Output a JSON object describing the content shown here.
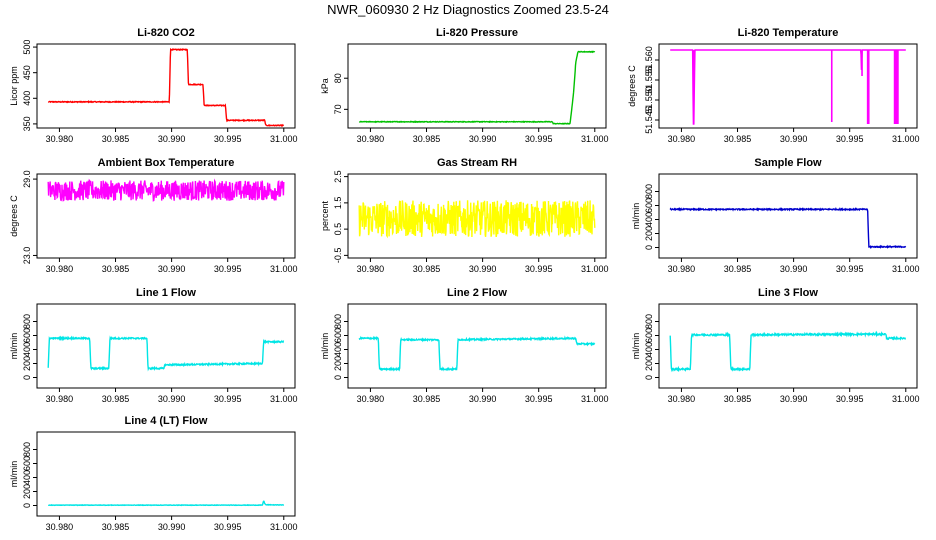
{
  "page": {
    "title": "NWR_060930  2 Hz Diagnostics Zoomed 23.5-24"
  },
  "chart_data": [
    {
      "type": "line",
      "title": "Li-820 CO2",
      "xlabel": "",
      "ylabel": "Licor ppm",
      "xlim": [
        30.978,
        31.001
      ],
      "ylim": [
        342,
        506
      ],
      "x_ticks": [
        "30.980",
        "30.985",
        "30.990",
        "30.995",
        "31.000"
      ],
      "y_ticks": [
        "350",
        "400",
        "450",
        "500"
      ],
      "color": "#ff0000",
      "noise": 0.8,
      "series": [
        {
          "x": [
            30.979,
            30.9898,
            30.9899,
            30.9914,
            30.9915,
            30.9928,
            30.9929,
            30.9948,
            30.9949,
            30.9983,
            30.9984,
            31.0
          ],
          "y": [
            393,
            393,
            495,
            495,
            427,
            427,
            386,
            386,
            357,
            357,
            347,
            347
          ]
        }
      ]
    },
    {
      "type": "line",
      "title": "Li-820 Pressure",
      "xlabel": "",
      "ylabel": "kPa",
      "xlim": [
        30.978,
        31.001
      ],
      "ylim": [
        64,
        91
      ],
      "x_ticks": [
        "30.980",
        "30.985",
        "30.990",
        "30.995",
        "31.000"
      ],
      "y_ticks": [
        "70",
        "80"
      ],
      "color": "#00c000",
      "noise": 0.1,
      "series": [
        {
          "x": [
            30.979,
            30.9962,
            30.9963,
            30.9978,
            30.9981,
            30.9983,
            30.9985,
            31.0
          ],
          "y": [
            66.0,
            66.0,
            65.4,
            65.4,
            75,
            85,
            88.5,
            88.5
          ]
        }
      ]
    },
    {
      "type": "line",
      "title": "Li-820 Temperature",
      "xlabel": "",
      "ylabel": "degrees C",
      "xlim": [
        30.978,
        31.001
      ],
      "ylim": [
        51.543,
        51.564
      ],
      "x_ticks": [
        "30.980",
        "30.985",
        "30.990",
        "30.995",
        "31.000"
      ],
      "y_ticks": [
        "51.545",
        "51.550",
        "51.555",
        "51.560"
      ],
      "color": "#ff00ff",
      "noise": 0,
      "series": [
        {
          "x": [
            30.979,
            30.981,
            30.98105,
            30.9811,
            30.9812,
            30.996,
            30.99605,
            30.9961,
            30.9962,
            30.9934,
            31.0
          ],
          "y": [
            51.5625,
            51.5625,
            51.544,
            51.544,
            51.5625,
            51.5625,
            51.557,
            51.5625,
            51.5625,
            51.5625,
            51.5625
          ]
        }
      ],
      "spikes": [
        {
          "x": 30.9811,
          "y": 51.544
        },
        {
          "x": 30.9961,
          "y": 51.556
        },
        {
          "x": 30.9934,
          "y": 51.5445
        },
        {
          "x": 30.9966,
          "y": 51.544
        },
        {
          "x": 30.9967,
          "y": 51.544
        },
        {
          "x": 30.999,
          "y": 51.544
        },
        {
          "x": 30.9991,
          "y": 51.544
        },
        {
          "x": 30.9992,
          "y": 51.544
        },
        {
          "x": 30.9993,
          "y": 51.544
        }
      ]
    },
    {
      "type": "line",
      "title": "Ambient Box Temperature",
      "xlabel": "",
      "ylabel": "degrees C",
      "xlim": [
        30.978,
        31.001
      ],
      "ylim": [
        22.8,
        29.4
      ],
      "x_ticks": [
        "30.980",
        "30.985",
        "30.990",
        "30.995",
        "31.000"
      ],
      "y_ticks": [
        "23.0",
        "29.0"
      ],
      "color": "#ff00ff",
      "noise": 0.8,
      "series": [
        {
          "x": [
            30.979,
            31.0
          ],
          "y": [
            28.1,
            28.1
          ]
        }
      ]
    },
    {
      "type": "line",
      "title": "Gas Stream RH",
      "xlabel": "",
      "ylabel": "percent",
      "xlim": [
        30.978,
        31.001
      ],
      "ylim": [
        -0.6,
        2.6
      ],
      "x_ticks": [
        "30.980",
        "30.985",
        "30.990",
        "30.995",
        "31.000"
      ],
      "y_ticks": [
        "-0.5",
        "0.5",
        "1.5",
        "2.5"
      ],
      "color": "#ffff00",
      "noise": 0.7,
      "series": [
        {
          "x": [
            30.979,
            31.0
          ],
          "y": [
            0.9,
            0.9
          ]
        }
      ]
    },
    {
      "type": "line",
      "title": "Sample Flow",
      "xlabel": "",
      "ylabel": "ml/min",
      "xlim": [
        30.978,
        31.001
      ],
      "ylim": [
        -150,
        1050
      ],
      "x_ticks": [
        "30.980",
        "30.985",
        "30.990",
        "30.995",
        "31.000"
      ],
      "y_ticks": [
        "0",
        "200",
        "400",
        "600",
        "800"
      ],
      "color": "#0000cc",
      "noise": 8,
      "series": [
        {
          "x": [
            30.979,
            30.988,
            30.9966,
            30.9967,
            31.0
          ],
          "y": [
            545,
            545,
            545,
            10,
            10
          ]
        }
      ]
    },
    {
      "type": "line",
      "title": "Line 1 Flow",
      "xlabel": "",
      "ylabel": "ml/min",
      "xlim": [
        30.978,
        31.001
      ],
      "ylim": [
        -150,
        1050
      ],
      "x_ticks": [
        "30.980",
        "30.985",
        "30.990",
        "30.995",
        "31.000"
      ],
      "y_ticks": [
        "0",
        "200",
        "400",
        "600",
        "800"
      ],
      "color": "#00e5e5",
      "noise": 10,
      "series": [
        {
          "x": [
            30.979,
            30.9791,
            30.9827,
            30.9828,
            30.9844,
            30.9845,
            30.9878,
            30.9879,
            30.9893,
            30.9894,
            30.9981,
            30.9982,
            31.0
          ],
          "y": [
            130,
            560,
            560,
            130,
            130,
            560,
            560,
            130,
            130,
            180,
            200,
            510,
            510
          ]
        }
      ]
    },
    {
      "type": "line",
      "title": "Line 2 Flow",
      "xlabel": "",
      "ylabel": "ml/min",
      "xlim": [
        30.978,
        31.001
      ],
      "ylim": [
        -150,
        1050
      ],
      "x_ticks": [
        "30.980",
        "30.985",
        "30.990",
        "30.995",
        "31.000"
      ],
      "y_ticks": [
        "0",
        "200",
        "400",
        "600",
        "800"
      ],
      "color": "#00e5e5",
      "noise": 10,
      "series": [
        {
          "x": [
            30.979,
            30.9807,
            30.9808,
            30.9826,
            30.9827,
            30.9861,
            30.9862,
            30.9877,
            30.9878,
            30.9983,
            30.9984,
            31.0
          ],
          "y": [
            560,
            560,
            120,
            120,
            540,
            540,
            120,
            120,
            540,
            560,
            480,
            480
          ]
        }
      ]
    },
    {
      "type": "line",
      "title": "Line 3 Flow",
      "xlabel": "",
      "ylabel": "ml/min",
      "xlim": [
        30.978,
        31.001
      ],
      "ylim": [
        -150,
        1050
      ],
      "x_ticks": [
        "30.980",
        "30.985",
        "30.990",
        "30.995",
        "31.000"
      ],
      "y_ticks": [
        "0",
        "200",
        "400",
        "600",
        "800"
      ],
      "color": "#00e5e5",
      "noise": 12,
      "series": [
        {
          "x": [
            30.979,
            30.9791,
            30.9808,
            30.9809,
            30.9843,
            30.9844,
            30.9861,
            30.9862,
            30.9982,
            30.9983,
            31.0
          ],
          "y": [
            600,
            120,
            120,
            610,
            610,
            120,
            120,
            610,
            620,
            560,
            560
          ]
        }
      ]
    },
    {
      "type": "line",
      "title": "Line 4 (LT) Flow",
      "xlabel": "",
      "ylabel": "ml/min",
      "xlim": [
        30.978,
        31.001
      ],
      "ylim": [
        -150,
        1050
      ],
      "x_ticks": [
        "30.980",
        "30.985",
        "30.990",
        "30.995",
        "31.000"
      ],
      "y_ticks": [
        "0",
        "200",
        "400",
        "600",
        "800"
      ],
      "color": "#00e5e5",
      "noise": 3,
      "series": [
        {
          "x": [
            30.979,
            30.9981,
            30.9982,
            30.9983,
            30.9984,
            31.0
          ],
          "y": [
            5,
            5,
            70,
            30,
            10,
            8
          ]
        }
      ]
    }
  ]
}
